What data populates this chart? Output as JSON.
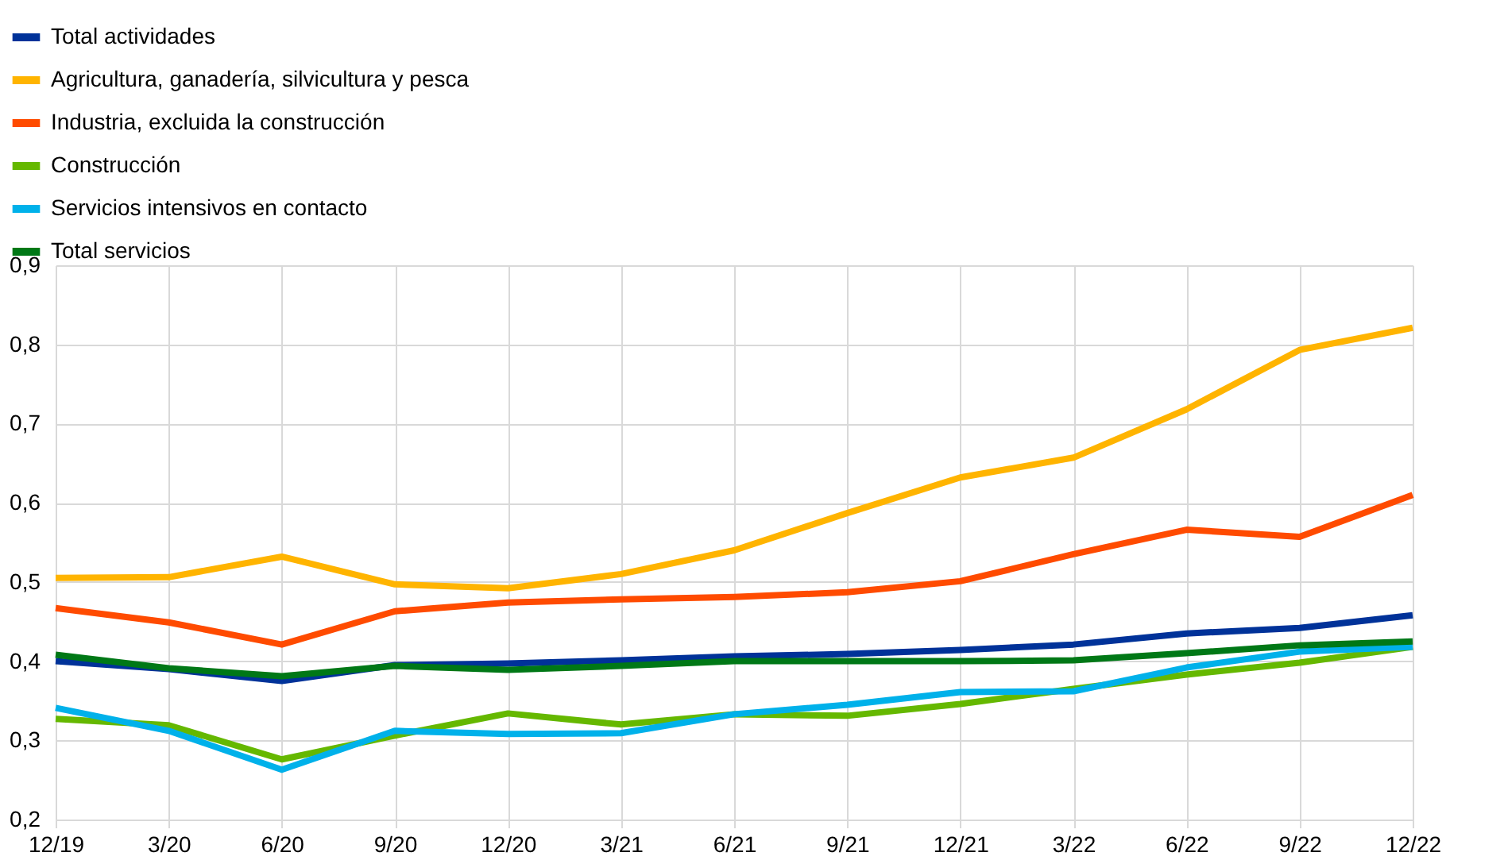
{
  "chart_data": {
    "type": "line",
    "categories": [
      "12/19",
      "3/20",
      "6/20",
      "9/20",
      "12/20",
      "3/21",
      "6/21",
      "9/21",
      "12/21",
      "3/22",
      "6/22",
      "9/22",
      "12/22"
    ],
    "series": [
      {
        "name": "Total actividades",
        "color": "#003299",
        "values": [
          0.4,
          0.39,
          0.375,
          0.395,
          0.397,
          0.401,
          0.406,
          0.409,
          0.414,
          0.421,
          0.435,
          0.442,
          0.458
        ]
      },
      {
        "name": "Agricultura, ganadería, silvicultura y pesca",
        "color": "#ffb400",
        "values": [
          0.505,
          0.506,
          0.532,
          0.497,
          0.492,
          0.51,
          0.54,
          0.587,
          0.632,
          0.657,
          0.718,
          0.793,
          0.821
        ]
      },
      {
        "name": "Industria, excluida la construcción",
        "color": "#ff4b00",
        "values": [
          0.467,
          0.449,
          0.421,
          0.463,
          0.474,
          0.478,
          0.481,
          0.487,
          0.501,
          0.535,
          0.566,
          0.557,
          0.61
        ]
      },
      {
        "name": "Construcción",
        "color": "#65b800",
        "values": [
          0.327,
          0.319,
          0.276,
          0.306,
          0.334,
          0.32,
          0.333,
          0.331,
          0.346,
          0.365,
          0.383,
          0.398,
          0.418
        ]
      },
      {
        "name": "Servicios intensivos en contacto",
        "color": "#00b1ea",
        "values": [
          0.341,
          0.312,
          0.263,
          0.312,
          0.308,
          0.309,
          0.333,
          0.345,
          0.361,
          0.362,
          0.392,
          0.412,
          0.418
        ]
      },
      {
        "name": "Total servicios",
        "color": "#007816",
        "values": [
          0.408,
          0.391,
          0.381,
          0.394,
          0.389,
          0.394,
          0.4,
          0.4,
          0.4,
          0.401,
          0.41,
          0.42,
          0.425
        ]
      }
    ],
    "ylim": [
      0.2,
      0.9
    ],
    "yticks": [
      {
        "value": 0.2,
        "label": "0,2"
      },
      {
        "value": 0.3,
        "label": "0,3"
      },
      {
        "value": 0.4,
        "label": "0,4"
      },
      {
        "value": 0.5,
        "label": "0,5"
      },
      {
        "value": 0.6,
        "label": "0,6"
      },
      {
        "value": 0.7,
        "label": "0,7"
      },
      {
        "value": 0.8,
        "label": "0,8"
      },
      {
        "value": 0.9,
        "label": "0,9"
      }
    ],
    "grid": true,
    "legend": "top left",
    "marker": "none",
    "line_style": "solid"
  }
}
